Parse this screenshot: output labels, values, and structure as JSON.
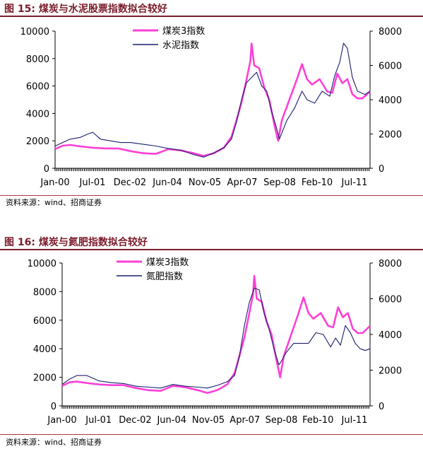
{
  "figures": [
    {
      "title": "图 15: 煤炭与水泥股票指数拟合较好",
      "source": "资料来源：wind、招商证券"
    },
    {
      "title": "图 16: 煤炭与氮肥指数拟合较好",
      "source": "资料来源：wind、招商证券"
    }
  ],
  "chart_data": [
    {
      "type": "line",
      "title": "",
      "x_tick_labels": [
        "Jan-00",
        "Jul-01",
        "Dec-02",
        "Jun-04",
        "Nov-05",
        "Apr-07",
        "Sep-08",
        "Feb-10",
        "Jul-11"
      ],
      "x_range": [
        2000.0,
        2012.5
      ],
      "ylim_left": [
        0,
        10000
      ],
      "yticks_left": [
        "0",
        "2000",
        "4000",
        "6000",
        "8000",
        "10000"
      ],
      "ylim_right": [
        0,
        8000
      ],
      "yticks_right": [
        "0",
        "2000",
        "4000",
        "6000",
        "8000"
      ],
      "grid": false,
      "legend_position": "top",
      "colors": {
        "series1": "#ff3fd6",
        "series2": "#1a1f6e"
      },
      "series": [
        {
          "name": "煤炭3指数",
          "axis": "left",
          "x": [
            2000.0,
            2000.3,
            2000.6,
            2001.0,
            2001.5,
            2002.0,
            2002.5,
            2003.0,
            2003.5,
            2004.0,
            2004.5,
            2005.0,
            2005.5,
            2005.9,
            2006.3,
            2006.7,
            2007.0,
            2007.2,
            2007.4,
            2007.6,
            2007.75,
            2007.8,
            2007.9,
            2008.1,
            2008.3,
            2008.5,
            2008.7,
            2008.85,
            2009.0,
            2009.3,
            2009.6,
            2009.8,
            2010.0,
            2010.2,
            2010.5,
            2010.8,
            2011.0,
            2011.2,
            2011.4,
            2011.6,
            2011.8,
            2012.0,
            2012.2,
            2012.5
          ],
          "values": [
            1400,
            1650,
            1700,
            1600,
            1500,
            1450,
            1450,
            1250,
            1100,
            1050,
            1400,
            1300,
            1100,
            900,
            1100,
            1500,
            2300,
            3500,
            4800,
            6500,
            7800,
            9100,
            7500,
            7300,
            5900,
            5000,
            3200,
            2000,
            3500,
            5000,
            6500,
            7600,
            6500,
            6100,
            6500,
            5600,
            5500,
            6900,
            6200,
            6500,
            5400,
            5100,
            5100,
            5600
          ]
        },
        {
          "name": "水泥指数",
          "axis": "right",
          "x": [
            2000.0,
            2000.3,
            2000.6,
            2001.0,
            2001.3,
            2001.5,
            2001.8,
            2002.2,
            2002.6,
            2003.0,
            2003.5,
            2004.0,
            2004.5,
            2005.0,
            2005.5,
            2005.9,
            2006.3,
            2006.7,
            2007.0,
            2007.2,
            2007.4,
            2007.6,
            2007.8,
            2008.0,
            2008.2,
            2008.4,
            2008.6,
            2008.8,
            2008.9,
            2009.2,
            2009.5,
            2009.8,
            2010.0,
            2010.3,
            2010.6,
            2010.9,
            2011.1,
            2011.3,
            2011.45,
            2011.6,
            2011.8,
            2012.0,
            2012.3,
            2012.5
          ],
          "values": [
            1300,
            1500,
            1700,
            1800,
            2000,
            2100,
            1700,
            1600,
            1500,
            1500,
            1400,
            1300,
            1150,
            1050,
            800,
            650,
            900,
            1200,
            1700,
            2700,
            4000,
            5000,
            5300,
            5600,
            4800,
            4500,
            3300,
            2300,
            1700,
            2800,
            3500,
            4500,
            4000,
            3800,
            4500,
            4200,
            5400,
            6200,
            7300,
            7000,
            5300,
            4500,
            4300,
            4500
          ]
        }
      ]
    },
    {
      "type": "line",
      "title": "",
      "x_tick_labels": [
        "Jan-00",
        "Jul-01",
        "Dec-02",
        "Jun-04",
        "Nov-05",
        "Apr-07",
        "Sep-08",
        "Feb-10",
        "Jul-11"
      ],
      "x_range": [
        2000.0,
        2012.5
      ],
      "ylim_left": [
        0,
        10000
      ],
      "yticks_left": [
        "0",
        "2000",
        "4000",
        "6000",
        "8000",
        "10000"
      ],
      "ylim_right": [
        0,
        8000
      ],
      "yticks_right": [
        "0",
        "2000",
        "4000",
        "6000",
        "8000"
      ],
      "grid": false,
      "legend_position": "top",
      "colors": {
        "series1": "#ff3fd6",
        "series2": "#1a1f6e"
      },
      "series": [
        {
          "name": "煤炭3指数",
          "axis": "left",
          "x": [
            2000.0,
            2000.3,
            2000.6,
            2001.0,
            2001.5,
            2002.0,
            2002.5,
            2003.0,
            2003.5,
            2004.0,
            2004.5,
            2005.0,
            2005.5,
            2005.9,
            2006.3,
            2006.7,
            2007.0,
            2007.2,
            2007.4,
            2007.6,
            2007.75,
            2007.8,
            2007.9,
            2008.1,
            2008.3,
            2008.5,
            2008.7,
            2008.85,
            2009.0,
            2009.3,
            2009.6,
            2009.8,
            2010.0,
            2010.2,
            2010.5,
            2010.8,
            2011.0,
            2011.2,
            2011.4,
            2011.6,
            2011.8,
            2012.0,
            2012.2,
            2012.5
          ],
          "values": [
            1400,
            1650,
            1700,
            1600,
            1500,
            1450,
            1450,
            1250,
            1100,
            1050,
            1400,
            1300,
            1100,
            900,
            1100,
            1500,
            2300,
            3500,
            4800,
            6500,
            7800,
            9100,
            7500,
            7300,
            5900,
            5000,
            3200,
            2000,
            3500,
            5000,
            6500,
            7600,
            6500,
            6100,
            6500,
            5600,
            5500,
            6900,
            6200,
            6500,
            5400,
            5100,
            5100,
            5600
          ]
        },
        {
          "name": "氮肥指数",
          "axis": "right",
          "x": [
            2000.0,
            2000.3,
            2000.6,
            2001.0,
            2001.5,
            2002.0,
            2002.5,
            2003.0,
            2003.5,
            2004.0,
            2004.5,
            2005.0,
            2005.5,
            2005.9,
            2006.3,
            2006.7,
            2007.0,
            2007.2,
            2007.4,
            2007.6,
            2007.8,
            2008.0,
            2008.2,
            2008.4,
            2008.6,
            2008.8,
            2008.9,
            2009.1,
            2009.4,
            2009.7,
            2010.0,
            2010.3,
            2010.6,
            2010.9,
            2011.1,
            2011.3,
            2011.5,
            2011.7,
            2011.9,
            2012.1,
            2012.3,
            2012.5
          ],
          "values": [
            1200,
            1500,
            1700,
            1700,
            1400,
            1300,
            1250,
            1100,
            1050,
            1000,
            1200,
            1100,
            1050,
            1000,
            1150,
            1350,
            1700,
            2800,
            4500,
            5800,
            6600,
            6500,
            5200,
            4300,
            3200,
            2300,
            2500,
            3000,
            3500,
            3500,
            3500,
            4100,
            4000,
            3300,
            3800,
            3400,
            4500,
            4100,
            3500,
            3200,
            3100,
            3200
          ]
        }
      ]
    }
  ]
}
